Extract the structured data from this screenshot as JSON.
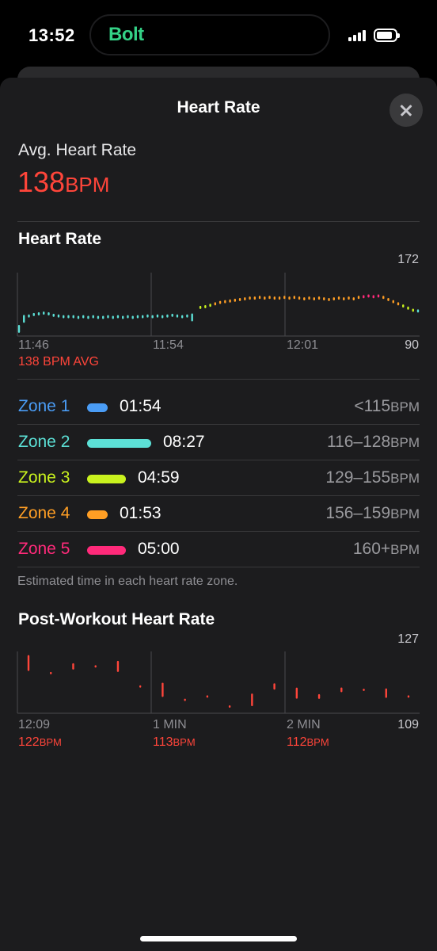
{
  "status_bar": {
    "time": "13:52",
    "island_app": "Bolt",
    "signal_icon": "signal-bars-icon",
    "battery_icon": "battery-icon"
  },
  "sheet": {
    "title": "Heart Rate",
    "close_icon": "close-icon",
    "avg_label": "Avg. Heart Rate",
    "avg_value": "138",
    "avg_unit": "BPM"
  },
  "hr_chart": {
    "title": "Heart Rate",
    "y_max": "172",
    "y_min": "90",
    "x_labels": [
      "11:46",
      "11:54",
      "12:01"
    ],
    "avg_text": "138 BPM AVG"
  },
  "zones": [
    {
      "name": "Zone 1",
      "duration": "01:54",
      "range": "<115",
      "unit": "BPM",
      "color": "#4a9cf5",
      "fraction": 0.13
    },
    {
      "name": "Zone 2",
      "duration": "08:27",
      "range": "116–128",
      "unit": "BPM",
      "color": "#5ce0d6",
      "fraction": 0.5
    },
    {
      "name": "Zone 3",
      "duration": "04:59",
      "range": "129–155",
      "unit": "BPM",
      "color": "#c9f21e",
      "fraction": 0.3
    },
    {
      "name": "Zone 4",
      "duration": "01:53",
      "range": "156–159",
      "unit": "BPM",
      "color": "#ff9e24",
      "fraction": 0.12
    },
    {
      "name": "Zone 5",
      "duration": "05:00",
      "range": "160+",
      "unit": "BPM",
      "color": "#ff2a7a",
      "fraction": 0.3
    }
  ],
  "zones_note": "Estimated time in each heart rate zone.",
  "post_chart": {
    "title": "Post-Workout Heart Rate",
    "y_max": "127",
    "y_min": "109",
    "x_labels": [
      "12:09",
      "1 MIN",
      "2 MIN"
    ],
    "readings": [
      {
        "value": "122",
        "unit": "BPM"
      },
      {
        "value": "113",
        "unit": "BPM"
      },
      {
        "value": "112",
        "unit": "BPM"
      }
    ]
  },
  "chart_data": [
    {
      "type": "scatter",
      "title": "Heart Rate",
      "x_tick_labels": [
        "11:46",
        "11:54",
        "12:01"
      ],
      "ylim": [
        90,
        172
      ],
      "y_tick_labels": [
        "172",
        "90"
      ],
      "annotation": "138 BPM AVG",
      "x_minutes": [
        0,
        0.3,
        0.6,
        0.9,
        1.2,
        1.5,
        1.8,
        2.1,
        2.4,
        2.7,
        3.0,
        3.3,
        3.6,
        3.9,
        4.2,
        4.5,
        4.8,
        5.1,
        5.4,
        5.7,
        6.0,
        6.3,
        6.6,
        6.9,
        7.2,
        7.5,
        7.8,
        8.1,
        8.4,
        8.7,
        9.0,
        9.3,
        9.6,
        9.9,
        10.2,
        10.5,
        11.0,
        11.3,
        11.6,
        11.9,
        12.2,
        12.5,
        12.8,
        13.1,
        13.4,
        13.7,
        14.0,
        14.3,
        14.6,
        14.9,
        15.2,
        15.5,
        15.8,
        16.1,
        16.4,
        16.7,
        17.0,
        17.3,
        17.6,
        17.9,
        18.2,
        18.5,
        18.8,
        19.1,
        19.4,
        19.7,
        20.0,
        20.3,
        20.6,
        20.9,
        21.2,
        21.5,
        21.8,
        22.1,
        22.4,
        22.7,
        23.0,
        23.3,
        23.6,
        23.9,
        24.2
      ],
      "values": [
        100,
        114,
        118,
        120,
        121,
        122,
        121,
        119,
        118,
        117,
        117,
        117,
        116,
        117,
        116,
        117,
        116,
        116,
        117,
        116,
        117,
        116,
        117,
        116,
        117,
        117,
        118,
        117,
        118,
        117,
        118,
        119,
        118,
        117,
        118,
        116,
        130,
        131,
        133,
        135,
        137,
        138,
        139,
        140,
        141,
        142,
        143,
        143,
        144,
        143,
        144,
        143,
        143,
        144,
        143,
        144,
        143,
        142,
        143,
        142,
        143,
        142,
        141,
        142,
        143,
        142,
        143,
        142,
        144,
        145,
        146,
        145,
        146,
        144,
        141,
        138,
        135,
        132,
        129,
        126,
        125
      ],
      "series_colors_by_zone": [
        "#5ce0d6",
        "#c9f21e",
        "#ff9e24",
        "#ff2a7a"
      ]
    },
    {
      "type": "scatter",
      "title": "Post-Workout Heart Rate",
      "x_tick_labels": [
        "12:09",
        "1 MIN",
        "2 MIN"
      ],
      "ylim": [
        109,
        127
      ],
      "y_tick_labels": [
        "127",
        "109"
      ],
      "x_seconds": [
        5,
        15,
        25,
        35,
        45,
        55,
        65,
        75,
        85,
        95,
        105,
        115,
        125,
        135,
        145,
        155,
        165,
        175
      ],
      "values": [
        124,
        121,
        123,
        123,
        123,
        117,
        116,
        113,
        114,
        111,
        113,
        117,
        115,
        114,
        116,
        116,
        115,
        114
      ],
      "readings": [
        "122",
        "113",
        "112"
      ],
      "color": "#ff453a"
    }
  ]
}
